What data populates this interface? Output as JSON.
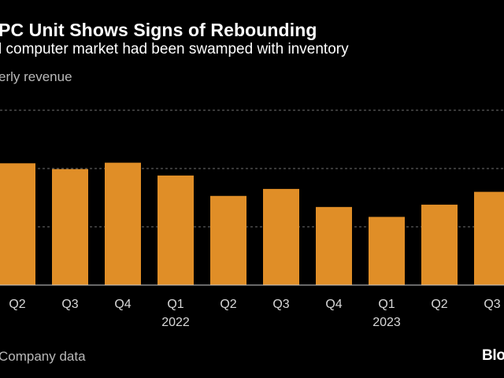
{
  "header": {
    "title": "PC Unit Shows Signs of Rebounding",
    "subtitle": "l computer market had been swamped with inventory",
    "unit_label": "erly revenue"
  },
  "footer": {
    "source": "Company data",
    "brand": "Bloo"
  },
  "colors": {
    "bar": "#E08E27",
    "grid": "#6f6f6f",
    "background": "#000000"
  },
  "chart_data": {
    "type": "bar",
    "title": "PC Unit Shows Signs of Rebounding",
    "subtitle": "l computer market had been swamped with inventory",
    "ylabel": "erly revenue",
    "xlabel": "",
    "categories": [
      "Q2",
      "Q3",
      "Q4",
      "Q1",
      "Q2",
      "Q3",
      "Q4",
      "Q1",
      "Q2",
      "Q3"
    ],
    "year_labels": [
      {
        "category_index": 3,
        "label": "2022"
      },
      {
        "category_index": 7,
        "label": "2023"
      }
    ],
    "values": [
      2.09,
      1.99,
      2.1,
      1.88,
      1.53,
      1.65,
      1.34,
      1.17,
      1.38,
      1.6
    ],
    "ylim": [
      0,
      3
    ],
    "grid_values": [
      1,
      2,
      3
    ],
    "grid": true,
    "legend": "none"
  }
}
